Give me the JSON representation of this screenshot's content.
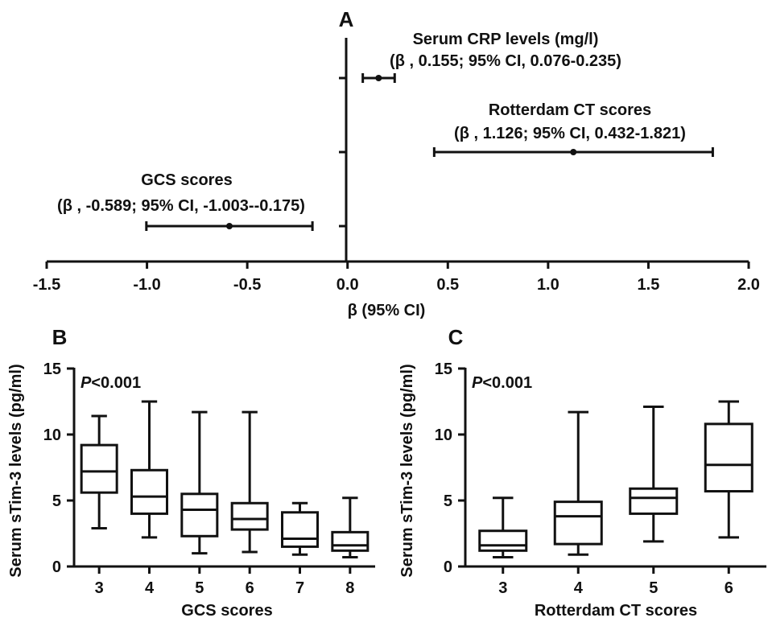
{
  "chart_data": [
    {
      "panel": "A",
      "type": "forest",
      "xlabel": "β  (95% CI)",
      "xlim": [
        -1.5,
        2.0
      ],
      "xticks": [
        "-1.5",
        "-1.0",
        "-0.5",
        "0.0",
        "0.5",
        "1.0",
        "1.5",
        "2.0"
      ],
      "series": [
        {
          "name": "Serum CRP levels (mg/l)",
          "ci_text": "(β ,  0.155; 95% CI, 0.076-0.235)",
          "beta": 0.155,
          "lower": 0.076,
          "upper": 0.235
        },
        {
          "name": "Rotterdam CT scores",
          "ci_text": "(β ,  1.126; 95% CI, 0.432-1.821)",
          "beta": 1.126,
          "lower": 0.432,
          "upper": 1.821
        },
        {
          "name": "GCS scores",
          "ci_text": "(β , -0.589; 95% CI, -1.003--0.175)",
          "beta": -0.589,
          "lower": -1.003,
          "upper": -0.175
        }
      ]
    },
    {
      "panel": "B",
      "type": "box",
      "annotation_p": "P",
      "annotation_rest": "<0.001",
      "xlabel": "GCS scores",
      "ylabel": "Serum sTim-3 levels (pg/ml)",
      "ylim": [
        0,
        15
      ],
      "yticks": [
        "0",
        "5",
        "10",
        "15"
      ],
      "categories": [
        "3",
        "4",
        "5",
        "6",
        "7",
        "8"
      ],
      "boxes": [
        {
          "min": 2.9,
          "q1": 5.6,
          "median": 7.2,
          "q3": 9.2,
          "max": 11.4
        },
        {
          "min": 2.2,
          "q1": 4.0,
          "median": 5.3,
          "q3": 7.3,
          "max": 12.5
        },
        {
          "min": 1.0,
          "q1": 2.3,
          "median": 4.3,
          "q3": 5.5,
          "max": 11.7
        },
        {
          "min": 1.1,
          "q1": 2.8,
          "median": 3.6,
          "q3": 4.8,
          "max": 11.7
        },
        {
          "min": 0.9,
          "q1": 1.5,
          "median": 2.1,
          "q3": 4.1,
          "max": 4.8
        },
        {
          "min": 0.7,
          "q1": 1.2,
          "median": 1.6,
          "q3": 2.6,
          "max": 5.2
        }
      ]
    },
    {
      "panel": "C",
      "type": "box",
      "annotation_p": "P",
      "annotation_rest": "<0.001",
      "xlabel": "Rotterdam CT scores",
      "ylabel": "Serum sTim-3 levels (pg/ml)",
      "ylim": [
        0,
        15
      ],
      "yticks": [
        "0",
        "5",
        "10",
        "15"
      ],
      "categories": [
        "3",
        "4",
        "5",
        "6"
      ],
      "boxes": [
        {
          "min": 0.7,
          "q1": 1.2,
          "median": 1.6,
          "q3": 2.7,
          "max": 5.2
        },
        {
          "min": 0.9,
          "q1": 1.7,
          "median": 3.8,
          "q3": 4.9,
          "max": 11.7
        },
        {
          "min": 1.9,
          "q1": 4.0,
          "median": 5.2,
          "q3": 5.9,
          "max": 12.1
        },
        {
          "min": 2.2,
          "q1": 5.7,
          "median": 7.7,
          "q3": 10.8,
          "max": 12.5
        }
      ]
    }
  ]
}
